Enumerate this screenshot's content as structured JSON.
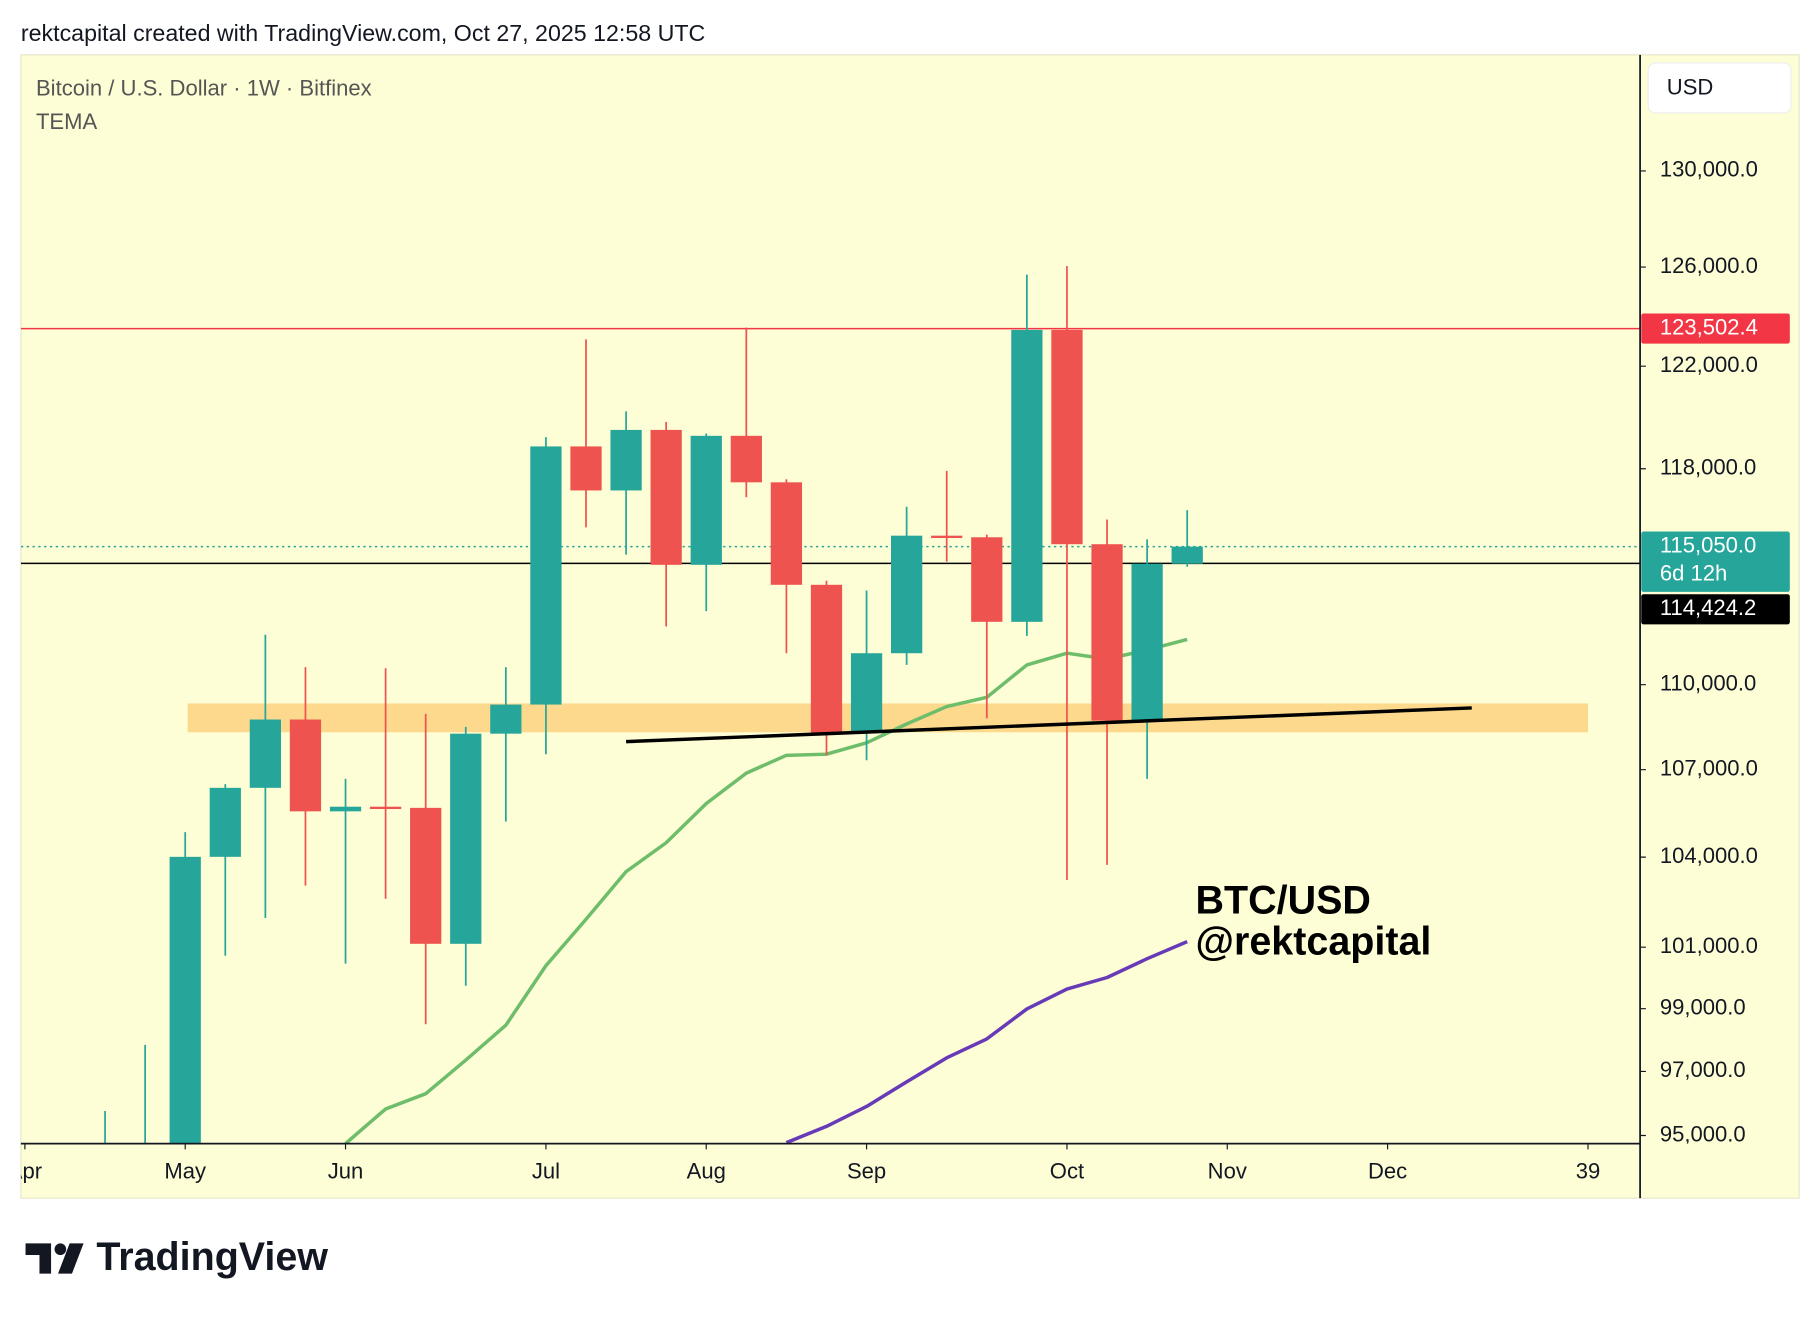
{
  "header": "rektcapital created with TradingView.com, Oct 27, 2025 12:58 UTC",
  "footer": {
    "brand": "TradingView"
  },
  "chart_data": {
    "type": "candlestick",
    "title": "Bitcoin / U.S. Dollar · 1W · Bitfinex",
    "indicator_label": "TEMA",
    "currency_label": "USD",
    "y_scale": "log",
    "grid": false,
    "up_color": "#26a69a",
    "down_color": "#ef5350",
    "background": "#fefed6",
    "x": [
      2,
      3,
      4,
      5,
      6,
      7,
      8,
      9,
      10,
      11,
      12,
      13,
      14,
      15,
      16,
      17,
      18,
      19,
      20,
      21,
      22,
      23,
      24,
      25,
      26,
      27,
      28,
      29
    ],
    "open": [
      93400,
      93800,
      94300,
      104010,
      106370,
      108760,
      105560,
      105720,
      105680,
      101110,
      108260,
      109290,
      118860,
      117170,
      119500,
      114370,
      119270,
      117480,
      113630,
      108300,
      111130,
      115460,
      115400,
      112270,
      123450,
      115140,
      108720,
      114410
    ],
    "high": [
      95760,
      97840,
      104850,
      106500,
      111800,
      110630,
      106680,
      110590,
      108960,
      108500,
      110630,
      119220,
      123070,
      120220,
      119810,
      119360,
      123540,
      117600,
      113780,
      113420,
      116550,
      117920,
      115500,
      125690,
      126040,
      116070,
      115320,
      116420
    ],
    "low": [
      92900,
      93400,
      93400,
      100720,
      101960,
      103040,
      100460,
      102600,
      98500,
      99740,
      105210,
      107540,
      115770,
      114750,
      112100,
      112660,
      116910,
      111130,
      107500,
      107330,
      110710,
      114490,
      108800,
      111760,
      103230,
      103740,
      106680,
      114300
    ],
    "close": [
      94300,
      94500,
      104010,
      106370,
      108760,
      105560,
      105720,
      105680,
      101110,
      108260,
      109290,
      118860,
      117170,
      119500,
      114370,
      119270,
      117480,
      113630,
      108300,
      111130,
      115460,
      115400,
      112270,
      123450,
      115140,
      108720,
      114410,
      115050
    ],
    "lines": [
      {
        "color": "#6dbd6a",
        "x": [
          8,
          9,
          10,
          11,
          12,
          13,
          14,
          15,
          16,
          17,
          18,
          19,
          20,
          21,
          22,
          23,
          24,
          25,
          26,
          27,
          28,
          29
        ],
        "values": [
          94750,
          95820,
          96300,
          97360,
          98470,
          100390,
          101920,
          103510,
          104490,
          105830,
          106880,
          107500,
          107540,
          107940,
          108600,
          109220,
          109550,
          110710,
          111130,
          110920,
          111250,
          111630
        ]
      },
      {
        "color": "#673ab7",
        "x": [
          19,
          20,
          21,
          22,
          23,
          24,
          25,
          26,
          27,
          28,
          29
        ],
        "values": [
          94780,
          95280,
          95900,
          96670,
          97430,
          98030,
          98990,
          99630,
          100010,
          100620,
          101180
        ]
      }
    ],
    "zone": {
      "color": "#fdd98e",
      "x": [
        4.06,
        39.0
      ],
      "y": [
        108310,
        109330
      ]
    },
    "trendline": {
      "color": "#000000",
      "x": [
        15.0,
        36.1
      ],
      "values": [
        107980,
        109170
      ]
    },
    "price_lines": [
      {
        "value": 123502.4,
        "label": "123,502.4",
        "color": "#f23645",
        "style": "solid"
      },
      {
        "value": 115050,
        "label": "115,050.0",
        "sublabel": "6d 12h",
        "color": "#26a69a",
        "style": "dotted"
      },
      {
        "value": 114424.2,
        "label": "114,424.2",
        "color": "#000000",
        "style": "solid"
      }
    ],
    "annotations": [
      "BTC/USD",
      "@rektcapital"
    ],
    "xlim": [
      -0.1,
      40.3
    ],
    "ylim": [
      94750,
      135000
    ],
    "xticks": [
      {
        "value": 0,
        "label": "Apr"
      },
      {
        "value": 4,
        "label": "May"
      },
      {
        "value": 8,
        "label": "Jun"
      },
      {
        "value": 13,
        "label": "Jul"
      },
      {
        "value": 17,
        "label": "Aug"
      },
      {
        "value": 21,
        "label": "Sep"
      },
      {
        "value": 26,
        "label": "Oct"
      },
      {
        "value": 30,
        "label": "Nov"
      },
      {
        "value": 34,
        "label": "Dec"
      },
      39
    ],
    "yticks": [
      {
        "value": 95000,
        "label": "95,000.0"
      },
      {
        "value": 97000,
        "label": "97,000.0"
      },
      {
        "value": 99000,
        "label": "99,000.0"
      },
      {
        "value": 101000,
        "label": "101,000.0"
      },
      {
        "value": 104000,
        "label": "104,000.0"
      },
      {
        "value": 107000,
        "label": "107,000.0"
      },
      {
        "value": 110000,
        "label": "110,000.0"
      },
      {
        "value": 118000,
        "label": "118,000.0"
      },
      {
        "value": 122000,
        "label": "122,000.0"
      },
      {
        "value": 126000,
        "label": "126,000.0"
      },
      {
        "value": 130000,
        "label": "130,000.0"
      }
    ]
  }
}
